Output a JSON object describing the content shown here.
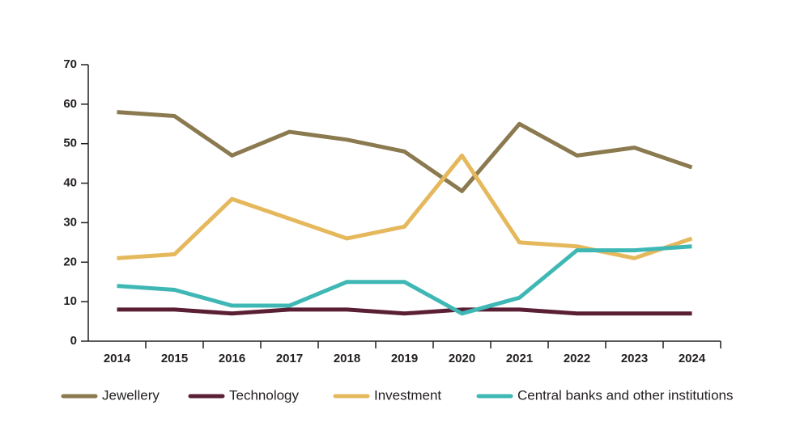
{
  "chart_data": {
    "type": "line",
    "categories": [
      "2014",
      "2015",
      "2016",
      "2017",
      "2018",
      "2019",
      "2020",
      "2021",
      "2022",
      "2023",
      "2024"
    ],
    "series": [
      {
        "name": "Jewellery",
        "color": "#8b7a4f",
        "values": [
          58,
          57,
          47,
          53,
          51,
          48,
          38,
          55,
          47,
          49,
          44
        ]
      },
      {
        "name": "Technology",
        "color": "#5a1f35",
        "values": [
          8,
          8,
          7,
          8,
          8,
          7,
          8,
          8,
          7,
          7,
          7
        ]
      },
      {
        "name": "Investment",
        "color": "#e5b85c",
        "values": [
          21,
          22,
          36,
          31,
          26,
          29,
          47,
          25,
          24,
          21,
          26
        ]
      },
      {
        "name": "Central banks and other institutions",
        "color": "#3fb8b5",
        "values": [
          14,
          13,
          9,
          9,
          15,
          15,
          7,
          11,
          23,
          23,
          24
        ]
      }
    ],
    "ylim": [
      0,
      70
    ],
    "yticks": [
      0,
      10,
      20,
      30,
      40,
      50,
      60,
      70
    ],
    "grid": false,
    "legend": "bottom"
  }
}
